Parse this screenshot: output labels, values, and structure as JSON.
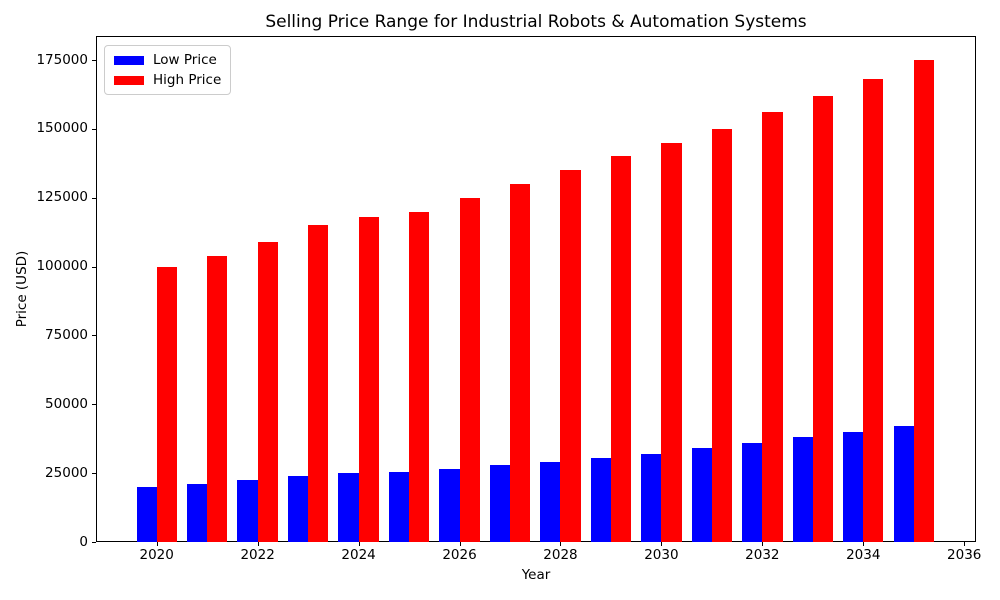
{
  "title": "Selling Price Range for Industrial Robots & Automation Systems",
  "chart_data": {
    "type": "bar",
    "title": "Selling Price Range for Industrial Robots & Automation Systems",
    "xlabel": "Year",
    "ylabel": "Price (USD)",
    "categories": [
      2020,
      2021,
      2022,
      2023,
      2024,
      2025,
      2026,
      2027,
      2028,
      2029,
      2030,
      2031,
      2032,
      2033,
      2034,
      2035
    ],
    "series": [
      {
        "name": "Low Price",
        "color": "#0000ff",
        "values": [
          20000,
          21000,
          22500,
          24000,
          25000,
          25500,
          26500,
          28000,
          29000,
          30500,
          32000,
          34000,
          36000,
          38000,
          40000,
          42000
        ]
      },
      {
        "name": "High Price",
        "color": "#ff0000",
        "values": [
          100000,
          104000,
          109000,
          115000,
          118000,
          120000,
          125000,
          130000,
          135000,
          140000,
          145000,
          150000,
          156000,
          162000,
          168000,
          175000
        ]
      }
    ],
    "ylim": [
      0,
      183750
    ],
    "yticks": [
      0,
      25000,
      50000,
      75000,
      100000,
      125000,
      150000,
      175000
    ],
    "xticks": [
      2020,
      2022,
      2024,
      2026,
      2028,
      2030,
      2032,
      2034,
      2036
    ],
    "bar_width_years": 0.4,
    "grid": false,
    "legend_position": "upper left"
  }
}
